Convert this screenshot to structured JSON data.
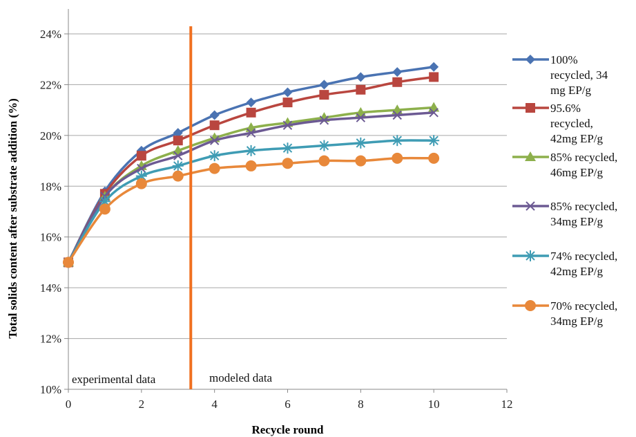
{
  "chart_data": {
    "type": "line",
    "title": "",
    "xlabel": "Recycle round",
    "ylabel": "Total solids content  after substrate addition (%)",
    "xlim": [
      0,
      12
    ],
    "ylim": [
      0.1,
      0.24
    ],
    "x_ticks": [
      "0",
      "2",
      "4",
      "6",
      "8",
      "10",
      "12"
    ],
    "y_ticks": [
      "10%",
      "12%",
      "14%",
      "16%",
      "18%",
      "20%",
      "22%",
      "24%"
    ],
    "grid": "horizontal",
    "legend_position": "right",
    "x": [
      0,
      1,
      2,
      3,
      4,
      5,
      6,
      7,
      8,
      9,
      10
    ],
    "series": [
      {
        "name_lines": [
          "100%",
          "recycled, 34",
          "mg EP/g"
        ],
        "color": "#4a73b2",
        "marker": "diamond",
        "values": [
          0.15,
          0.178,
          0.194,
          0.201,
          0.208,
          0.213,
          0.217,
          0.22,
          0.223,
          0.225,
          0.227
        ]
      },
      {
        "name_lines": [
          "95.6%",
          "recycled,",
          "42mg EP/g"
        ],
        "color": "#b9463f",
        "marker": "square",
        "values": [
          0.15,
          0.177,
          0.192,
          0.198,
          0.204,
          0.209,
          0.213,
          0.216,
          0.218,
          0.221,
          0.223
        ]
      },
      {
        "name_lines": [
          "85% recycled,",
          "46mg EP/g"
        ],
        "color": "#8db04c",
        "marker": "triangle",
        "values": [
          0.15,
          0.176,
          0.188,
          0.194,
          0.199,
          0.203,
          0.205,
          0.207,
          0.209,
          0.21,
          0.211
        ]
      },
      {
        "name_lines": [
          "85% recycled,",
          "34mg EP/g"
        ],
        "color": "#6c5a93",
        "marker": "x",
        "values": [
          0.15,
          0.176,
          0.187,
          0.192,
          0.198,
          0.201,
          0.204,
          0.206,
          0.207,
          0.208,
          0.209
        ]
      },
      {
        "name_lines": [
          "74% recycled,",
          "42mg EP/g"
        ],
        "color": "#3f9cb4",
        "marker": "star",
        "values": [
          0.15,
          0.174,
          0.184,
          0.188,
          0.192,
          0.194,
          0.195,
          0.196,
          0.197,
          0.198,
          0.198
        ]
      },
      {
        "name_lines": [
          "70% recycled,",
          "34mg EP/g"
        ],
        "color": "#e8883a",
        "marker": "circle",
        "values": [
          0.15,
          0.171,
          0.181,
          0.184,
          0.187,
          0.188,
          0.189,
          0.19,
          0.19,
          0.191,
          0.191
        ]
      }
    ],
    "divider": {
      "x": 3.35,
      "color": "#f07020"
    },
    "annotations": {
      "left": "experimental data",
      "right": "modeled data"
    }
  }
}
